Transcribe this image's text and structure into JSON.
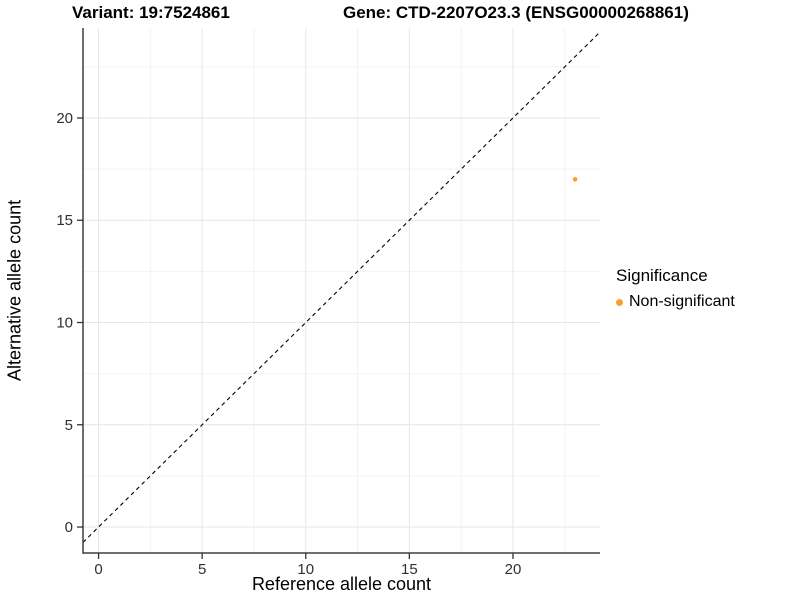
{
  "titles": {
    "variant": "Variant: 19:7524861",
    "gene": "Gene: CTD-2207O23.3 (ENSG00000268861)"
  },
  "chart_data": {
    "type": "scatter",
    "title": "Variant: 19:7524861   Gene: CTD-2207O23.3 (ENSG00000268861)",
    "xlabel": "Reference allele count",
    "ylabel": "Alternative allele count",
    "x_ticks": [
      0,
      5,
      10,
      15,
      20
    ],
    "y_ticks": [
      0,
      5,
      10,
      15,
      20
    ],
    "minor_gridlines": [
      2.5,
      7.5,
      12.5,
      17.5,
      22.5
    ],
    "xlim": [
      -0.75,
      24.2
    ],
    "ylim": [
      -1.27,
      24.4
    ],
    "grid": true,
    "points": [
      {
        "x": 23,
        "y": 17,
        "series": "Non-significant",
        "color": "#F9A12E"
      }
    ],
    "reference_line": {
      "equation": "y = x",
      "style": "dashed",
      "color": "#000000"
    },
    "legend": {
      "title": "Significance",
      "position": "right",
      "entries": [
        {
          "label": "Non-significant",
          "color": "#F9A12E"
        }
      ]
    }
  },
  "legend": {
    "title": "Significance",
    "items": [
      {
        "label": "Non-significant",
        "color": "#F9A12E"
      }
    ]
  },
  "colors": {
    "point": "#F9A12E",
    "axis_line": "#3F3F3F",
    "tick_mark": "#333333",
    "grid_major": "#E6E6E6",
    "grid_minor": "#F2F2F2",
    "background": "#FFFFFF",
    "text": "#000000"
  }
}
